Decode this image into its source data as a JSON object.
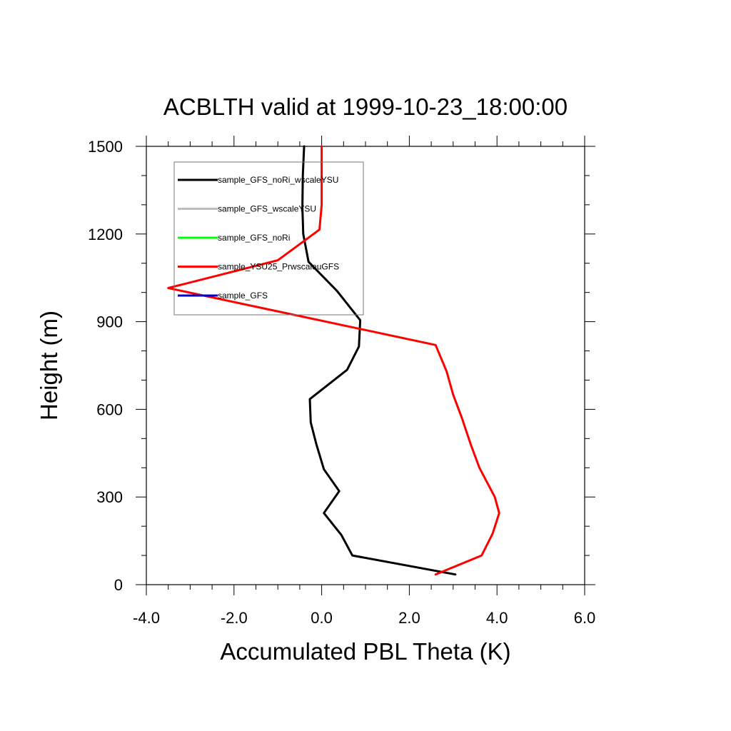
{
  "chart_data": {
    "type": "line",
    "title": "ACBLTH valid at 1999-10-23_18:00:00",
    "xlabel": "Accumulated PBL Theta (K)",
    "ylabel": "Height (m)",
    "xlim": [
      -4.0,
      6.0
    ],
    "ylim": [
      0,
      1500
    ],
    "xticks": [
      -4.0,
      -2.0,
      0.0,
      2.0,
      4.0,
      6.0
    ],
    "xtick_labels": [
      "-4.0",
      "-2.0",
      "0.0",
      "2.0",
      "4.0",
      "6.0"
    ],
    "yticks": [
      0,
      300,
      600,
      900,
      1200,
      1500
    ],
    "ytick_labels": [
      "0",
      "300",
      "600",
      "900",
      "1200",
      "1500"
    ],
    "grid": false,
    "legend_position": "top-left",
    "series": [
      {
        "name": "sample_GFS_noRi_wscaleYSU",
        "color": "#000000",
        "x": [
          3.05,
          0.7,
          0.45,
          0.05,
          0.4,
          0.05,
          -0.12,
          -0.25,
          -0.27,
          0.58,
          0.85,
          0.88,
          0.35,
          -0.3,
          -0.42,
          -0.44,
          -0.43,
          -0.4
        ],
        "y": [
          35,
          100,
          170,
          245,
          320,
          395,
          480,
          555,
          635,
          735,
          815,
          905,
          1005,
          1105,
          1200,
          1290,
          1400,
          1500
        ]
      },
      {
        "name": "sample_GFS_wscaleYSU",
        "color": "#bdbdbd",
        "x": [],
        "y": []
      },
      {
        "name": "sample_GFS_noRi",
        "color": "#00ff00",
        "x": [],
        "y": []
      },
      {
        "name": "sample_YSU25_PrwscaleuGFS",
        "color": "#ff0000",
        "x": [
          2.6,
          3.65,
          3.9,
          4.05,
          3.95,
          3.6,
          3.4,
          3.2,
          3.0,
          2.85,
          2.6,
          -3.5,
          -1.0,
          -0.05,
          0.0,
          0.0
        ],
        "y": [
          35,
          100,
          175,
          245,
          300,
          400,
          480,
          570,
          650,
          730,
          820,
          1015,
          1110,
          1215,
          1300,
          1500
        ]
      },
      {
        "name": "sample_GFS",
        "color": "#0000cc",
        "x": [],
        "y": []
      }
    ]
  }
}
